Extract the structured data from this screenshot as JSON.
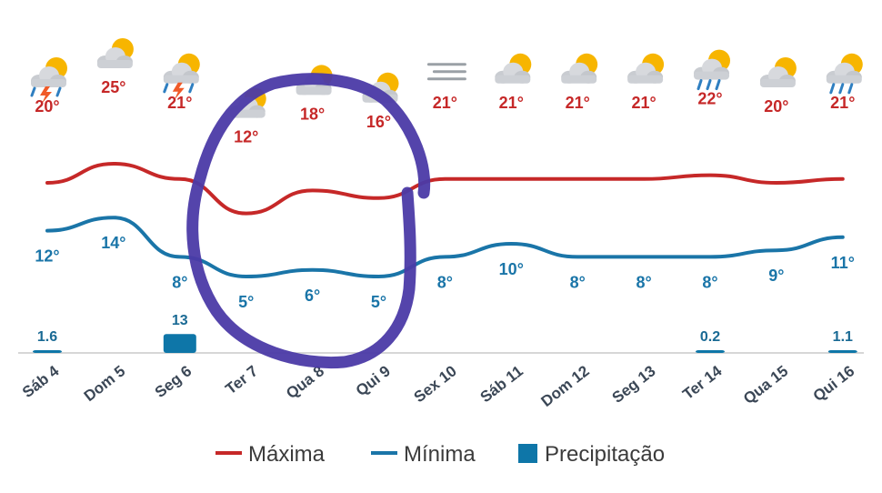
{
  "chart_data": {
    "type": "line",
    "categories": [
      "Sáb 4",
      "Dom 5",
      "Seg 6",
      "Ter 7",
      "Qua 8",
      "Qui 9",
      "Sex 10",
      "Sáb 11",
      "Dom 12",
      "Seg 13",
      "Ter 14",
      "Qua 15",
      "Qui 16"
    ],
    "series": [
      {
        "name": "Máxima",
        "color": "#c62828",
        "values": [
          20,
          25,
          21,
          12,
          18,
          16,
          21,
          21,
          21,
          21,
          22,
          20,
          21
        ],
        "labels": [
          "20°",
          "25°",
          "21°",
          "12°",
          "18°",
          "16°",
          "21°",
          "21°",
          "21°",
          "21°",
          "22°",
          "20°",
          "21°"
        ]
      },
      {
        "name": "Mínima",
        "color": "#1a75a8",
        "values": [
          12,
          14,
          8,
          5,
          6,
          5,
          8,
          10,
          8,
          8,
          8,
          9,
          11
        ],
        "labels": [
          "12°",
          "14°",
          "8°",
          "5°",
          "6°",
          "5°",
          "8°",
          "10°",
          "8°",
          "8°",
          "8°",
          "9°",
          "11°"
        ]
      },
      {
        "name": "Precipitação",
        "color": "#0e76a8",
        "values": [
          1.6,
          0,
          13,
          0,
          0,
          0,
          0,
          0,
          0,
          0,
          0.2,
          0,
          1.1
        ],
        "labels": [
          "1.6",
          "",
          "13",
          "",
          "",
          "",
          "",
          "",
          "",
          "",
          "0.2",
          "",
          "1.1"
        ]
      }
    ],
    "icons": [
      "storm-icon",
      "sun-cloud-icon",
      "storm-icon",
      "sun-cloud-icon",
      "sun-cloud-icon",
      "sun-cloud-icon",
      "fog-icon",
      "sun-cloud-icon",
      "sun-cloud-icon",
      "sun-cloud-icon",
      "rain-icon",
      "sun-cloud-icon",
      "rain-icon"
    ],
    "legend": {
      "position": "bottom",
      "items": [
        "Máxima",
        "Mínima",
        "Precipitação"
      ]
    },
    "grid": false,
    "annotation": {
      "type": "hand-drawn-circle",
      "color": "#4b3aa6",
      "covers": [
        "Ter 7",
        "Qua 8",
        "Qui 9"
      ]
    }
  }
}
